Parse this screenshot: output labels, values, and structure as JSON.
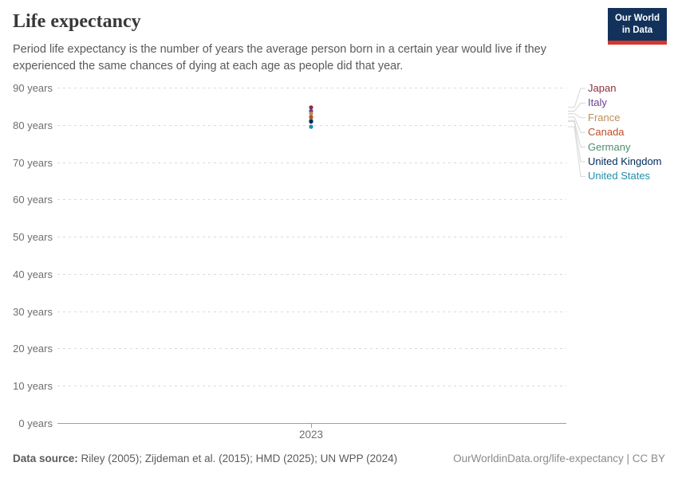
{
  "header": {
    "title": "Life expectancy",
    "subtitle": "Period life expectancy is the number of years the average person born in a certain year would live if they experienced the same chances of dying at each age as people did that year.",
    "logo": {
      "line1": "Our World",
      "line2": "in Data"
    }
  },
  "chart_data": {
    "type": "scatter",
    "title": "Life expectancy",
    "x": [
      2023
    ],
    "x_tick_label": "2023",
    "ylim": [
      0,
      90
    ],
    "grid": true,
    "legend_position": "right",
    "y_ticks": [
      {
        "value": 90,
        "label": "90 years"
      },
      {
        "value": 80,
        "label": "80 years"
      },
      {
        "value": 70,
        "label": "70 years"
      },
      {
        "value": 60,
        "label": "60 years"
      },
      {
        "value": 50,
        "label": "50 years"
      },
      {
        "value": 40,
        "label": "40 years"
      },
      {
        "value": 30,
        "label": "30 years"
      },
      {
        "value": 20,
        "label": "20 years"
      },
      {
        "value": 10,
        "label": "10 years"
      },
      {
        "value": 0,
        "label": "0 years"
      }
    ],
    "series": [
      {
        "name": "Japan",
        "year": 2023,
        "value": 84.7,
        "color": "#883039"
      },
      {
        "name": "Italy",
        "year": 2023,
        "value": 83.7,
        "color": "#6D3E91"
      },
      {
        "name": "France",
        "year": 2023,
        "value": 83.0,
        "color": "#BC8E5A"
      },
      {
        "name": "Canada",
        "year": 2023,
        "value": 82.1,
        "color": "#BE4E26"
      },
      {
        "name": "Germany",
        "year": 2023,
        "value": 81.2,
        "color": "#4C8C72"
      },
      {
        "name": "United Kingdom",
        "year": 2023,
        "value": 80.9,
        "color": "#00295B"
      },
      {
        "name": "United States",
        "year": 2023,
        "value": 79.5,
        "color": "#1F8FAB"
      }
    ],
    "colors": {
      "gridline": "#dadada",
      "axis": "#9e9e9e",
      "connector": "#d6d6d6"
    }
  },
  "footer": {
    "datasource_label": "Data source:",
    "datasource_text": " Riley (2005); Zijdeman et al. (2015); HMD (2025); UN WPP (2024)",
    "credit": "OurWorldinData.org/life-expectancy | CC BY"
  }
}
